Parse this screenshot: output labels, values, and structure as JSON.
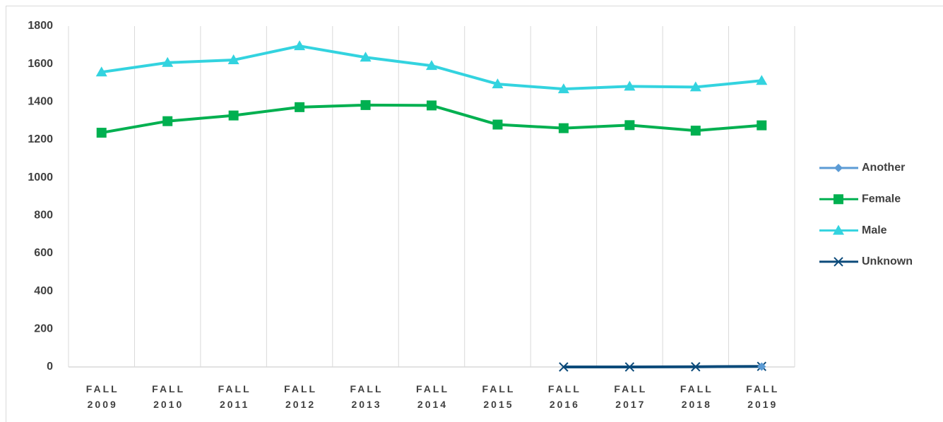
{
  "chart_data": {
    "type": "line",
    "categories": [
      "FALL 2009",
      "FALL 2010",
      "FALL 2011",
      "FALL 2012",
      "FALL 2013",
      "FALL 2014",
      "FALL 2015",
      "FALL 2016",
      "FALL 2017",
      "FALL 2018",
      "FALL 2019"
    ],
    "series": [
      {
        "name": "Another",
        "color": "#5b9bd5",
        "marker": "diamond",
        "values": [
          null,
          null,
          null,
          null,
          null,
          null,
          null,
          null,
          null,
          null,
          2
        ]
      },
      {
        "name": "Female",
        "color": "#00b050",
        "marker": "square",
        "values": [
          1237,
          1298,
          1328,
          1372,
          1383,
          1381,
          1280,
          1261,
          1277,
          1248,
          1276
        ]
      },
      {
        "name": "Male",
        "color": "#33d3df",
        "marker": "triangle",
        "values": [
          1557,
          1607,
          1621,
          1695,
          1635,
          1591,
          1494,
          1468,
          1482,
          1478,
          1512
        ]
      },
      {
        "name": "Unknown",
        "color": "#0b4a7a",
        "marker": "x",
        "values": [
          null,
          null,
          null,
          null,
          null,
          null,
          null,
          0,
          0,
          1,
          3
        ]
      }
    ],
    "ylim": [
      0,
      1800
    ],
    "yticks": [
      0,
      200,
      400,
      600,
      800,
      1000,
      1200,
      1400,
      1600,
      1800
    ],
    "grid": "vertical",
    "legend": "right"
  }
}
